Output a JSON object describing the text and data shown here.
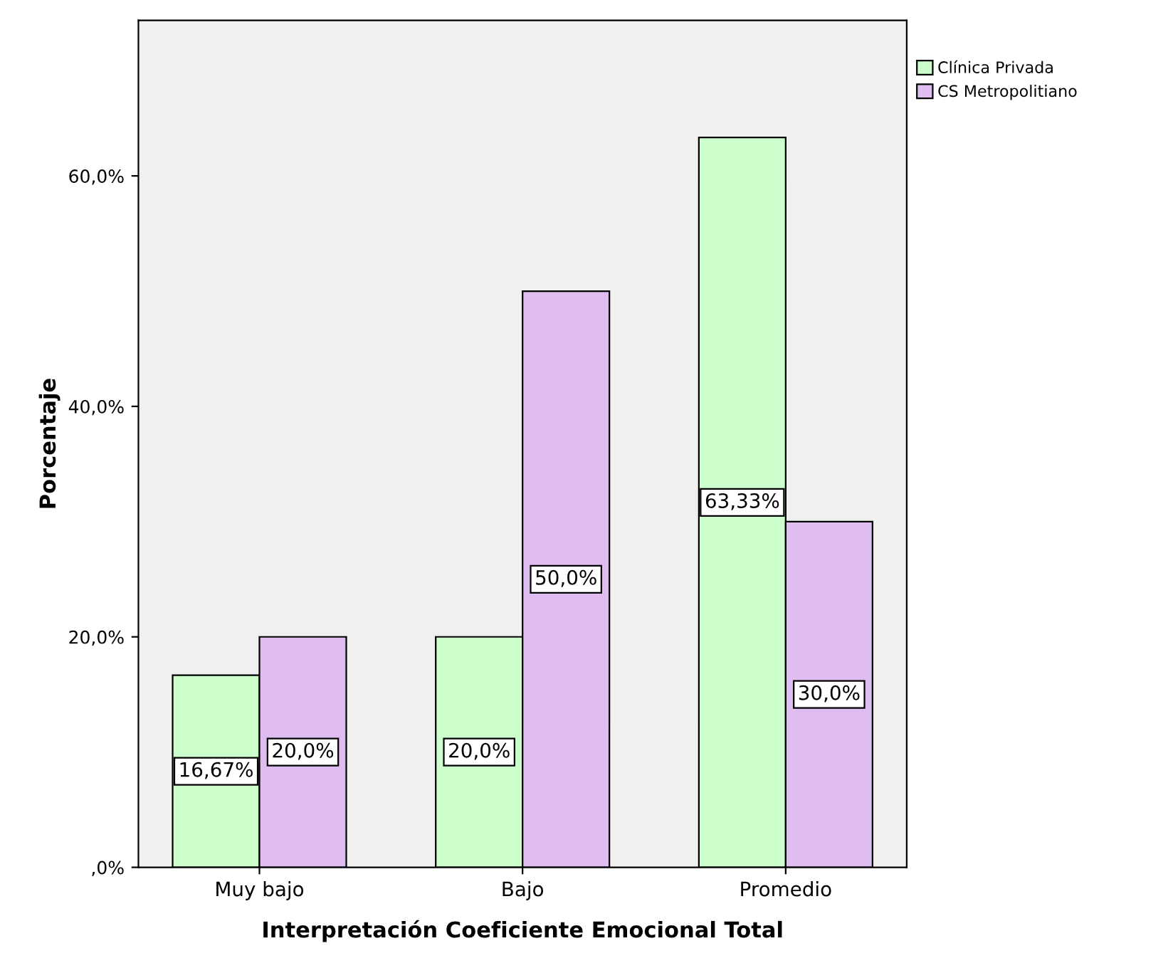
{
  "chart_data": {
    "type": "bar",
    "xlabel": "Interpretación Coeficiente Emocional Total",
    "ylabel": "Porcentaje",
    "categories": [
      "Muy bajo",
      "Bajo",
      "Promedio"
    ],
    "series": [
      {
        "name": "Clínica Privada",
        "color": "#ccffcc",
        "values": [
          16.67,
          20.0,
          63.33
        ],
        "value_labels": [
          "16,67%",
          "20,0%",
          "63,33%"
        ]
      },
      {
        "name": "CS Metropolitiano",
        "color": "#dfbdf0",
        "values": [
          20.0,
          50.0,
          30.0
        ],
        "value_labels": [
          "20,0%",
          "50,0%",
          "30,0%"
        ]
      }
    ],
    "ylim": [
      0,
      73.5
    ],
    "yticks": [
      {
        "value": 0,
        "label": ",0%"
      },
      {
        "value": 20,
        "label": "20,0%"
      },
      {
        "value": 40,
        "label": "40,0%"
      },
      {
        "value": 60,
        "label": "60,0%"
      }
    ],
    "grid": false,
    "legend": "top right"
  }
}
